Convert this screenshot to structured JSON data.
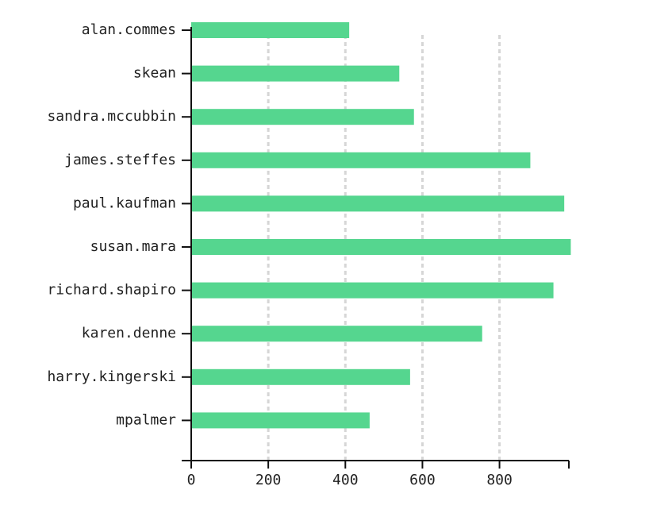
{
  "chart_data": {
    "type": "bar",
    "orientation": "horizontal",
    "categories": [
      "alan.commes",
      "skean",
      "sandra.mccubbin",
      "james.steffes",
      "paul.kaufman",
      "susan.mara",
      "richard.shapiro",
      "karen.denne",
      "harry.kingerski",
      "mpalmer"
    ],
    "values": [
      410,
      540,
      578,
      880,
      968,
      985,
      940,
      755,
      568,
      463
    ],
    "xlim": [
      0,
      980
    ],
    "xticks": [
      0,
      200,
      400,
      600,
      800
    ],
    "grid": "vertical dashed",
    "bar_color": "#55d68f",
    "title": "",
    "xlabel": "",
    "ylabel": ""
  }
}
